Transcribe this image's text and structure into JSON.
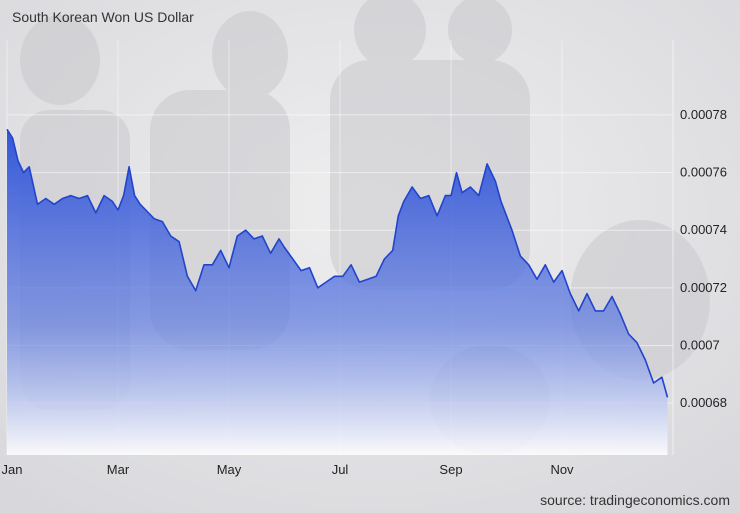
{
  "chart_data": {
    "type": "area",
    "title": "South Korean Won US Dollar",
    "source": "source: tradingeconomics.com",
    "xlabel": "",
    "ylabel": "",
    "x_tick_labels": [
      "Jan",
      "Mar",
      "May",
      "Jul",
      "Sep",
      "Nov"
    ],
    "y_tick_labels": [
      "0.00078",
      "0.00076",
      "0.00074",
      "0.00072",
      "0.0007",
      "0.00068"
    ],
    "y_ticks": [
      0.00078,
      0.00076,
      0.00074,
      0.00072,
      0.0007,
      0.00068
    ],
    "ylim": [
      0.000662,
      0.000806
    ],
    "xlim": [
      0,
      12
    ],
    "legend": "none",
    "grid": true,
    "colors": {
      "line": "#2244cc",
      "fill_top": "#2a4fd8",
      "fill_bottom": "#ffffff"
    },
    "series": [
      {
        "x": [
          0.0,
          0.1,
          0.2,
          0.3,
          0.4,
          0.55,
          0.7,
          0.85,
          1.0,
          1.15,
          1.3,
          1.45,
          1.6,
          1.75,
          1.9,
          2.0,
          2.1,
          2.2,
          2.3,
          2.4,
          2.5,
          2.65,
          2.8,
          2.95,
          3.1,
          3.25,
          3.4,
          3.55,
          3.7,
          3.85,
          4.0,
          4.15,
          4.3,
          4.45,
          4.6,
          4.75,
          4.9,
          5.0,
          5.15,
          5.3,
          5.45,
          5.6,
          5.75,
          5.9,
          6.05,
          6.2,
          6.35,
          6.5,
          6.65,
          6.8,
          6.95,
          7.05,
          7.15,
          7.3,
          7.45,
          7.6,
          7.75,
          7.9,
          8.0,
          8.1,
          8.2,
          8.35,
          8.5,
          8.65,
          8.8,
          8.9,
          9.0,
          9.1,
          9.25,
          9.4,
          9.55,
          9.7,
          9.85,
          10.0,
          10.15,
          10.3,
          10.45,
          10.6,
          10.75,
          10.9,
          11.05,
          11.2,
          11.35,
          11.5,
          11.65,
          11.8,
          11.9
        ],
        "y": [
          0.000775,
          0.000772,
          0.000764,
          0.00076,
          0.000762,
          0.000749,
          0.000751,
          0.000749,
          0.000751,
          0.000752,
          0.000751,
          0.000752,
          0.000746,
          0.000752,
          0.00075,
          0.000747,
          0.000752,
          0.000762,
          0.000752,
          0.000749,
          0.000747,
          0.000744,
          0.000743,
          0.000738,
          0.000736,
          0.000724,
          0.000719,
          0.000728,
          0.000728,
          0.000733,
          0.000727,
          0.000738,
          0.00074,
          0.000737,
          0.000738,
          0.000732,
          0.000737,
          0.000734,
          0.00073,
          0.000726,
          0.000727,
          0.00072,
          0.000722,
          0.000724,
          0.000724,
          0.000728,
          0.000722,
          0.000723,
          0.000724,
          0.00073,
          0.000733,
          0.000745,
          0.00075,
          0.000755,
          0.000751,
          0.000752,
          0.000745,
          0.000752,
          0.000752,
          0.00076,
          0.000753,
          0.000755,
          0.000752,
          0.000763,
          0.000757,
          0.00075,
          0.000745,
          0.00074,
          0.000731,
          0.000728,
          0.000723,
          0.000728,
          0.000722,
          0.000726,
          0.000718,
          0.000712,
          0.000718,
          0.000712,
          0.000712,
          0.000717,
          0.000711,
          0.000704,
          0.000701,
          0.000695,
          0.000687,
          0.000689,
          0.000682
        ]
      }
    ]
  }
}
